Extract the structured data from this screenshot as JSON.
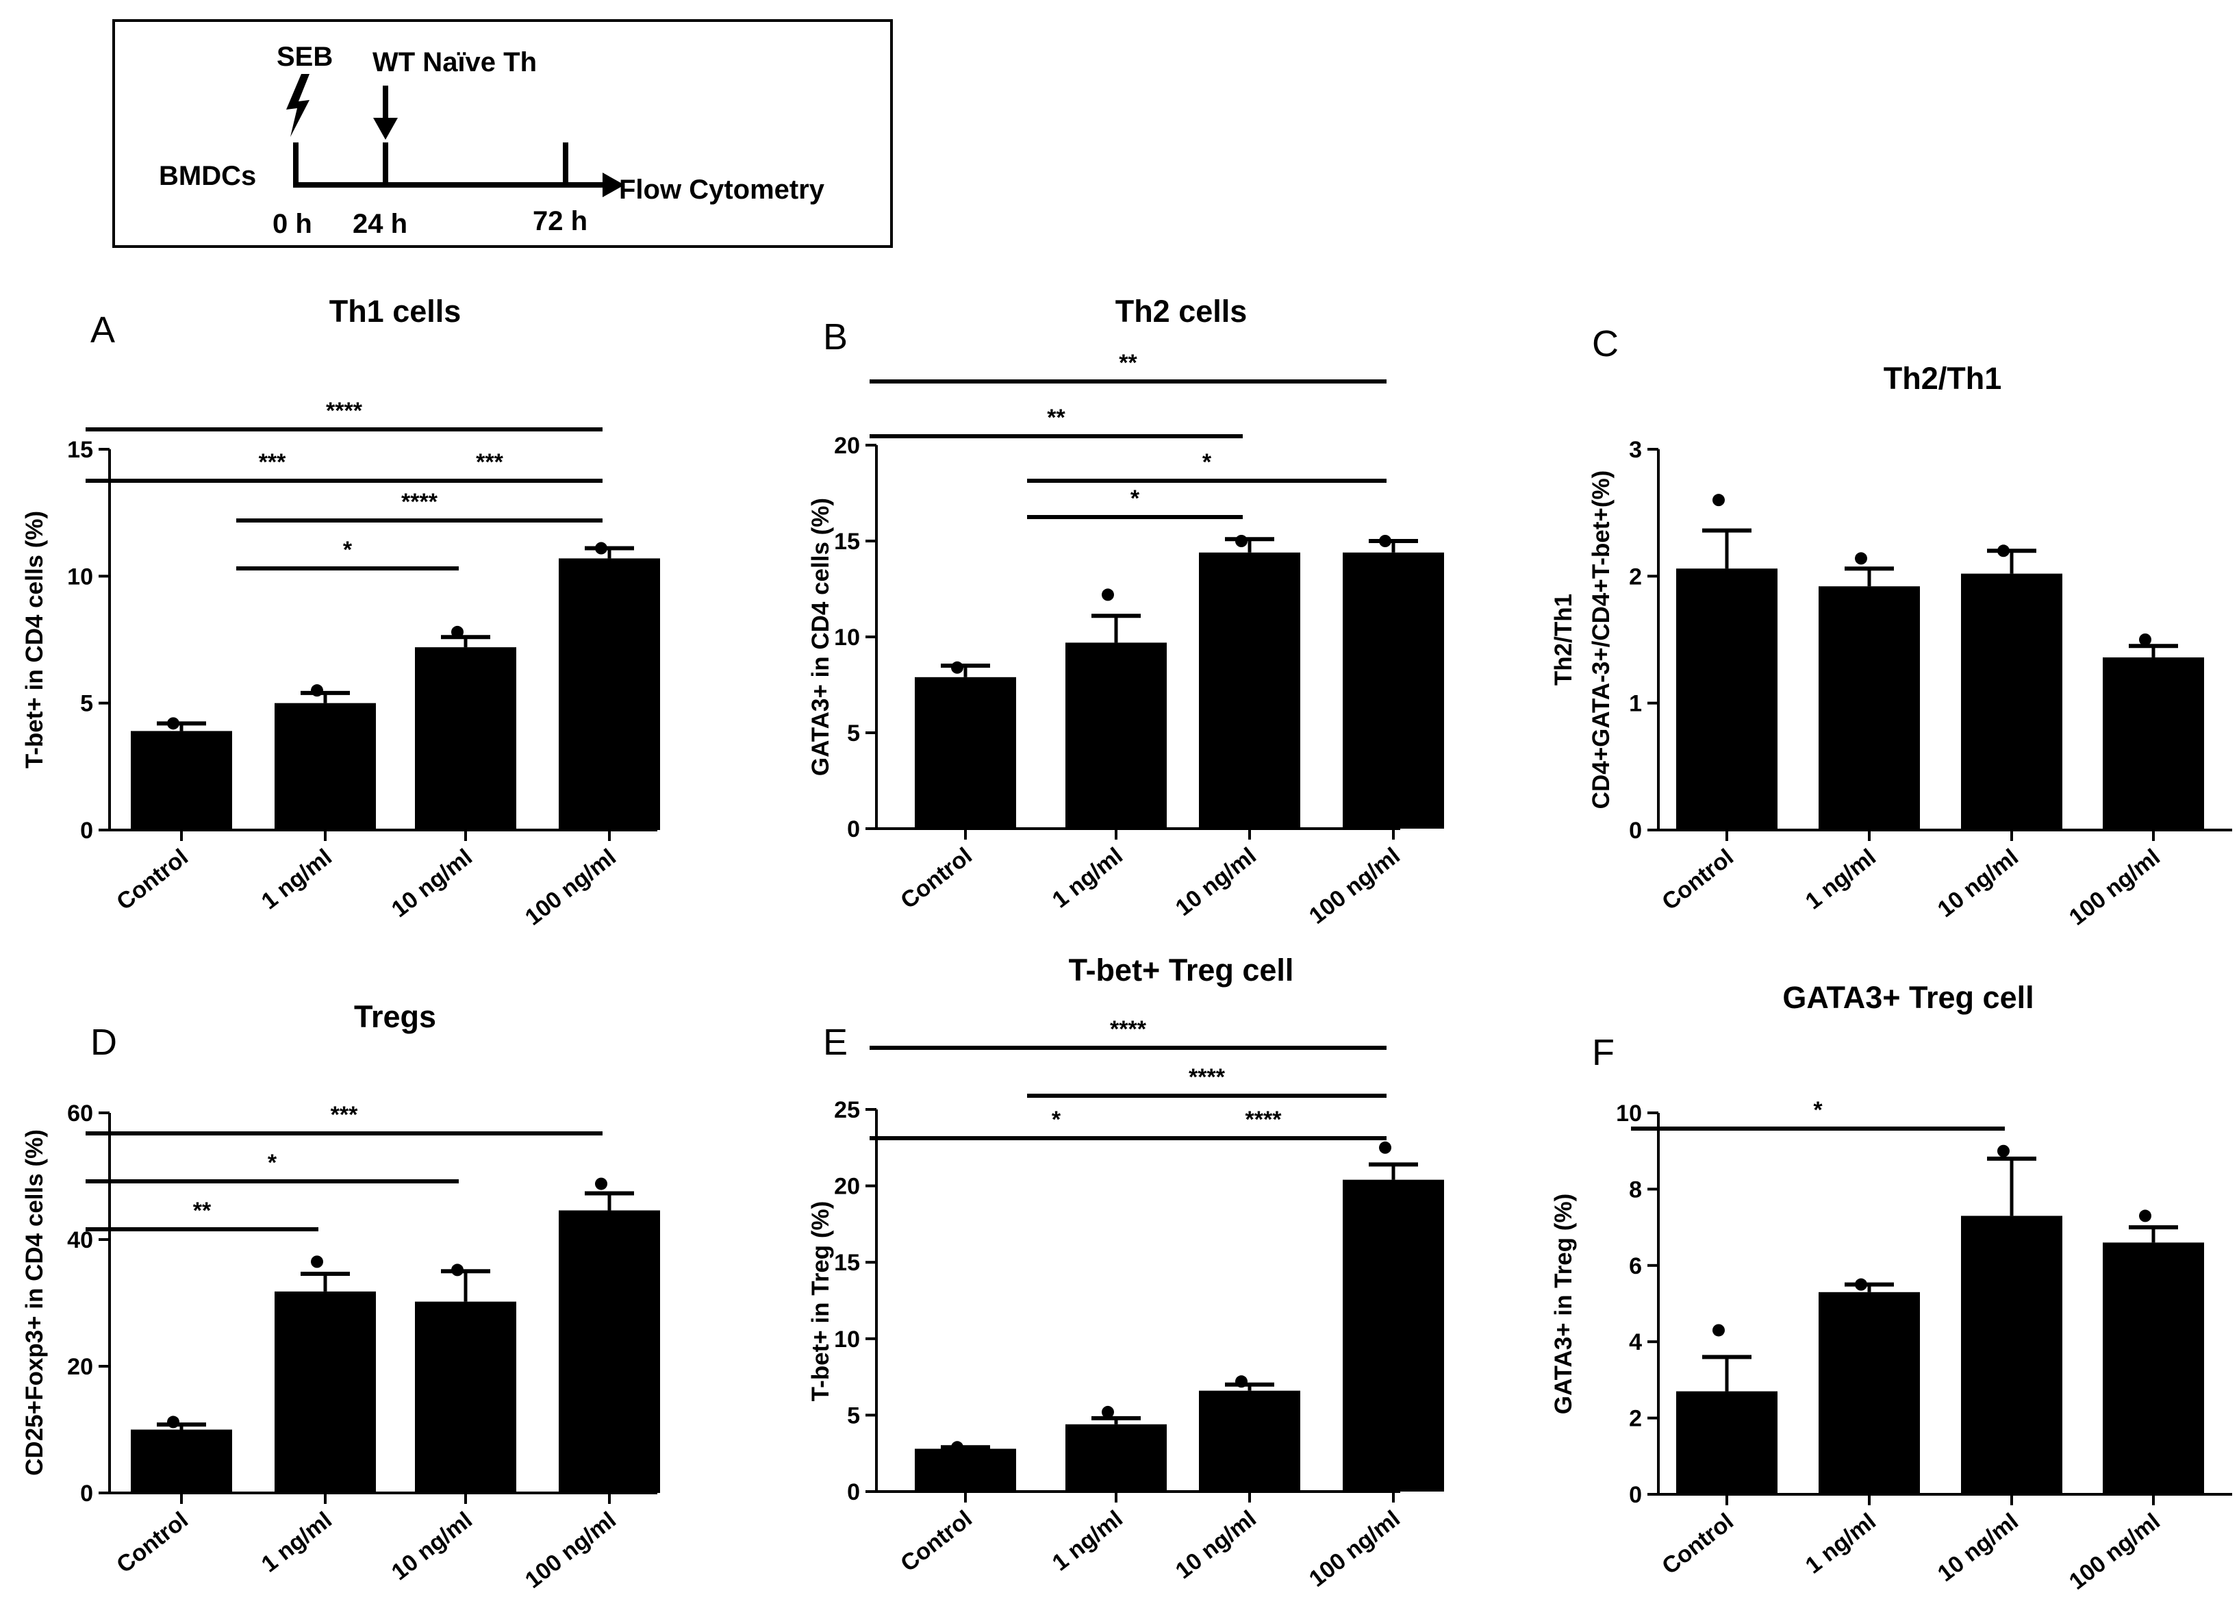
{
  "timeline": {
    "seb": "SEB",
    "naive": "WT Naïve Th",
    "bmdcs": "BMDCs",
    "flow": "Flow Cytometry",
    "t0": "0 h",
    "t24": "24 h",
    "t72": "72 h"
  },
  "chart_data": [
    {
      "id": "A",
      "type": "bar",
      "panel_label": "A",
      "title": "Th1 cells",
      "ylabel": "T-bet+ in CD4 cells (%)",
      "categories": [
        "Control",
        "1 ng/ml",
        "10 ng/ml",
        "100 ng/ml"
      ],
      "values": [
        3.9,
        5.0,
        7.2,
        10.7
      ],
      "errors": [
        0.3,
        0.4,
        0.4,
        0.4
      ],
      "points": [
        4.2,
        5.5,
        7.8,
        11.1
      ],
      "ylim": [
        0,
        15
      ],
      "yticks": [
        0,
        5,
        10,
        15
      ],
      "significance": [
        {
          "from": 0,
          "to": 3,
          "label": "****",
          "level": 4
        },
        {
          "from": 0,
          "to": 2,
          "label": "***",
          "level": 3
        },
        {
          "from": 2,
          "to": 3,
          "label": "***",
          "level": 3
        },
        {
          "from": 1,
          "to": 3,
          "label": "****",
          "level": 2
        },
        {
          "from": 1,
          "to": 2,
          "label": "*",
          "level": 1
        }
      ]
    },
    {
      "id": "B",
      "type": "bar",
      "panel_label": "B",
      "title": "Th2 cells",
      "ylabel": "GATA3+ in CD4 cells (%)",
      "categories": [
        "Control",
        "1 ng/ml",
        "10 ng/ml",
        "100 ng/ml"
      ],
      "values": [
        7.9,
        9.7,
        14.4,
        14.4
      ],
      "errors": [
        0.6,
        1.4,
        0.7,
        0.6
      ],
      "points": [
        8.4,
        12.2,
        15.0,
        15.0
      ],
      "ylim": [
        0,
        20
      ],
      "yticks": [
        0,
        5,
        10,
        15,
        20
      ],
      "significance": [
        {
          "from": 0,
          "to": 3,
          "label": "**",
          "level": 4
        },
        {
          "from": 0,
          "to": 2,
          "label": "**",
          "level": 3
        },
        {
          "from": 1,
          "to": 3,
          "label": "*",
          "level": 2
        },
        {
          "from": 1,
          "to": 2,
          "label": "*",
          "level": 1
        }
      ]
    },
    {
      "id": "C",
      "type": "bar",
      "panel_label": "C",
      "title": "Th2/Th1",
      "ylabel": "Th2/Th1",
      "ylabel2": "CD4+GATA-3+/CD4+T-bet+(%)",
      "categories": [
        "Control",
        "1 ng/ml",
        "10 ng/ml",
        "100 ng/ml"
      ],
      "values": [
        2.06,
        1.92,
        2.02,
        1.36
      ],
      "errors": [
        0.3,
        0.14,
        0.18,
        0.09
      ],
      "points": [
        2.6,
        2.14,
        2.2,
        1.5
      ],
      "ylim": [
        0,
        3
      ],
      "yticks": [
        0,
        1,
        2,
        3
      ],
      "significance": []
    },
    {
      "id": "D",
      "type": "bar",
      "panel_label": "D",
      "title": "Tregs",
      "ylabel": "CD25+Foxp3+ in CD4 cells (%)",
      "categories": [
        "Control",
        "1 ng/ml",
        "10 ng/ml",
        "100 ng/ml"
      ],
      "values": [
        10.0,
        31.8,
        30.2,
        44.6
      ],
      "errors": [
        0.8,
        2.8,
        4.8,
        2.7
      ],
      "points": [
        11.2,
        36.5,
        35.2,
        48.8
      ],
      "ylim": [
        0,
        60
      ],
      "yticks": [
        0,
        20,
        40,
        60
      ],
      "significance": [
        {
          "from": 0,
          "to": 3,
          "label": "***",
          "level": 3
        },
        {
          "from": 0,
          "to": 2,
          "label": "*",
          "level": 2
        },
        {
          "from": 0,
          "to": 1,
          "label": "**",
          "level": 1
        }
      ]
    },
    {
      "id": "E",
      "type": "bar",
      "panel_label": "E",
      "title": "T-bet+ Treg cell",
      "ylabel": "T-bet+ in Treg (%)",
      "categories": [
        "Control",
        "1 ng/ml",
        "10 ng/ml",
        "100 ng/ml"
      ],
      "values": [
        2.8,
        4.4,
        6.6,
        20.4
      ],
      "errors": [
        0.1,
        0.4,
        0.4,
        1.0
      ],
      "points": [
        2.9,
        5.2,
        7.2,
        22.5
      ],
      "ylim": [
        0,
        25
      ],
      "yticks": [
        0,
        5,
        10,
        15,
        20,
        25
      ],
      "significance": [
        {
          "from": 0,
          "to": 3,
          "label": "****",
          "level": 3
        },
        {
          "from": 1,
          "to": 3,
          "label": "****",
          "level": 2
        },
        {
          "from": 0,
          "to": 2,
          "label": "*",
          "level": 1
        },
        {
          "from": 2,
          "to": 3,
          "label": "****",
          "level": 1
        }
      ]
    },
    {
      "id": "F",
      "type": "bar",
      "panel_label": "F",
      "title": "GATA3+ Treg cell",
      "ylabel": "GATA3+ in Treg (%)",
      "categories": [
        "Control",
        "1 ng/ml",
        "10 ng/ml",
        "100 ng/ml"
      ],
      "values": [
        2.7,
        5.3,
        7.3,
        6.6
      ],
      "errors": [
        0.9,
        0.2,
        1.5,
        0.4
      ],
      "points": [
        4.3,
        5.5,
        9.0,
        7.3
      ],
      "ylim": [
        0,
        10
      ],
      "yticks": [
        0,
        2,
        4,
        6,
        8,
        10
      ],
      "significance": [
        {
          "from": 0,
          "to": 2,
          "label": "*",
          "level": 1
        }
      ]
    }
  ]
}
